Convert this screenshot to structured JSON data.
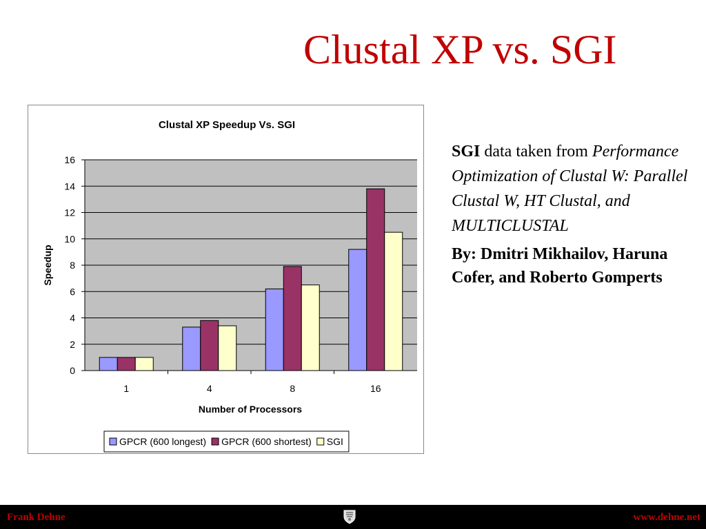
{
  "slide": {
    "title": "Clustal XP vs. SGI",
    "source_lead": "SGI",
    "source_text": " data taken from ",
    "source_title": "Performance Optimization of Clustal W: Parallel Clustal W, HT Clustal, and MULTICLUSTAL",
    "authors": "By: Dmitri Mikhailov, Haruna Cofer, and Roberto Gomperts"
  },
  "footer": {
    "left": "Frank Dehne",
    "right": "www.dehne.net",
    "crest_icon": "university-crest-icon"
  },
  "colors": {
    "title": "#c00000",
    "plot_bg": "#c0c0c0",
    "series": [
      "#9999ff",
      "#993366",
      "#ffffcc"
    ]
  },
  "chart_data": {
    "type": "bar",
    "title": "Clustal XP Speedup Vs. SGI",
    "xlabel": "Number of Processors",
    "ylabel": "Speedup",
    "categories": [
      "1",
      "4",
      "8",
      "16"
    ],
    "ylim": [
      0,
      16
    ],
    "yticks": [
      0,
      2,
      4,
      6,
      8,
      10,
      12,
      14,
      16
    ],
    "grid": true,
    "legend_position": "bottom",
    "series": [
      {
        "name": "GPCR (600 longest)",
        "values": [
          1.0,
          3.3,
          6.2,
          9.2
        ]
      },
      {
        "name": "GPCR (600 shortest)",
        "values": [
          1.0,
          3.8,
          7.9,
          13.8
        ]
      },
      {
        "name": "SGI",
        "values": [
          1.0,
          3.4,
          6.5,
          10.5
        ]
      }
    ]
  }
}
